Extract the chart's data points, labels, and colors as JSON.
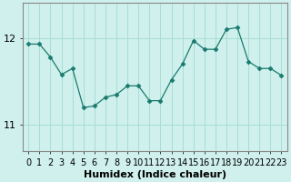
{
  "x": [
    0,
    1,
    2,
    3,
    4,
    5,
    6,
    7,
    8,
    9,
    10,
    11,
    12,
    13,
    14,
    15,
    16,
    17,
    18,
    19,
    20,
    21,
    22,
    23
  ],
  "y": [
    11.93,
    11.93,
    11.78,
    11.58,
    11.65,
    11.2,
    11.22,
    11.32,
    11.35,
    11.45,
    11.45,
    11.28,
    11.28,
    11.52,
    11.7,
    11.97,
    11.87,
    11.87,
    12.1,
    12.12,
    11.73,
    11.65,
    11.65,
    11.57
  ],
  "line_color": "#1a7a6e",
  "marker": "D",
  "marker_size": 2.5,
  "bg_color": "#cff0ec",
  "grid_color": "#a8ddd8",
  "xlabel": "Humidex (Indice chaleur)",
  "xlabel_fontsize": 8,
  "yticks": [
    11,
    12
  ],
  "ylim": [
    10.7,
    12.4
  ],
  "xlim": [
    -0.5,
    23.5
  ],
  "tick_label_fontsize": 7,
  "axis_color": "#888888",
  "figsize": [
    3.2,
    2.0
  ],
  "dpi": 100
}
